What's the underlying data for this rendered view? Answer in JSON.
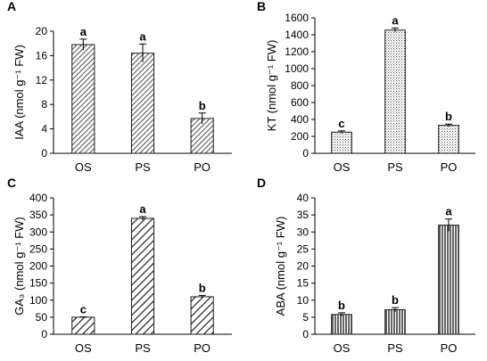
{
  "chart_data": [
    {
      "panel_letter": "A",
      "type": "bar",
      "categories": [
        "OS",
        "PS",
        "PO"
      ],
      "values": [
        17.8,
        16.4,
        5.7
      ],
      "errors": [
        0.9,
        1.5,
        0.9
      ],
      "significance": [
        "a",
        "a",
        "b"
      ],
      "ylabel": "IAA (nmol g⁻¹ FW)",
      "ylim": [
        0,
        20
      ],
      "yticks": [
        0,
        4,
        8,
        12,
        16,
        20
      ],
      "fill": "diagonal-hatch",
      "color": "#1a1a1a"
    },
    {
      "panel_letter": "B",
      "type": "bar",
      "categories": [
        "OS",
        "PS",
        "PO"
      ],
      "values": [
        250,
        1455,
        330
      ],
      "errors": [
        15,
        25,
        15
      ],
      "significance": [
        "c",
        "a",
        "b"
      ],
      "ylabel": "KT (nmol g⁻¹ FW)",
      "ylim": [
        0,
        1600
      ],
      "yticks": [
        0,
        200,
        400,
        600,
        800,
        1000,
        1200,
        1400,
        1600
      ],
      "fill": "dotted",
      "color": "#1a1a1a"
    },
    {
      "panel_letter": "C",
      "type": "bar",
      "categories": [
        "OS",
        "PS",
        "PO"
      ],
      "values": [
        50,
        340,
        110
      ],
      "errors": [
        1,
        5,
        4
      ],
      "significance": [
        "c",
        "a",
        "b"
      ],
      "ylabel": "GA₃ (nmol g⁻¹ FW)",
      "ylim": [
        0,
        400
      ],
      "yticks": [
        0,
        50,
        100,
        150,
        200,
        250,
        300,
        350,
        400
      ],
      "fill": "wide-diagonal-hatch",
      "color": "#1a1a1a"
    },
    {
      "panel_letter": "D",
      "type": "bar",
      "categories": [
        "OS",
        "PS",
        "PO"
      ],
      "values": [
        5.8,
        7.2,
        32
      ],
      "errors": [
        0.5,
        0.6,
        1.8
      ],
      "significance": [
        "b",
        "b",
        "a"
      ],
      "ylabel": "ABA (nmol g⁻¹ FW)",
      "ylim": [
        0,
        40
      ],
      "yticks": [
        0,
        5,
        10,
        15,
        20,
        25,
        30,
        35,
        40
      ],
      "fill": "vertical-stripes",
      "color": "#1a1a1a"
    }
  ]
}
